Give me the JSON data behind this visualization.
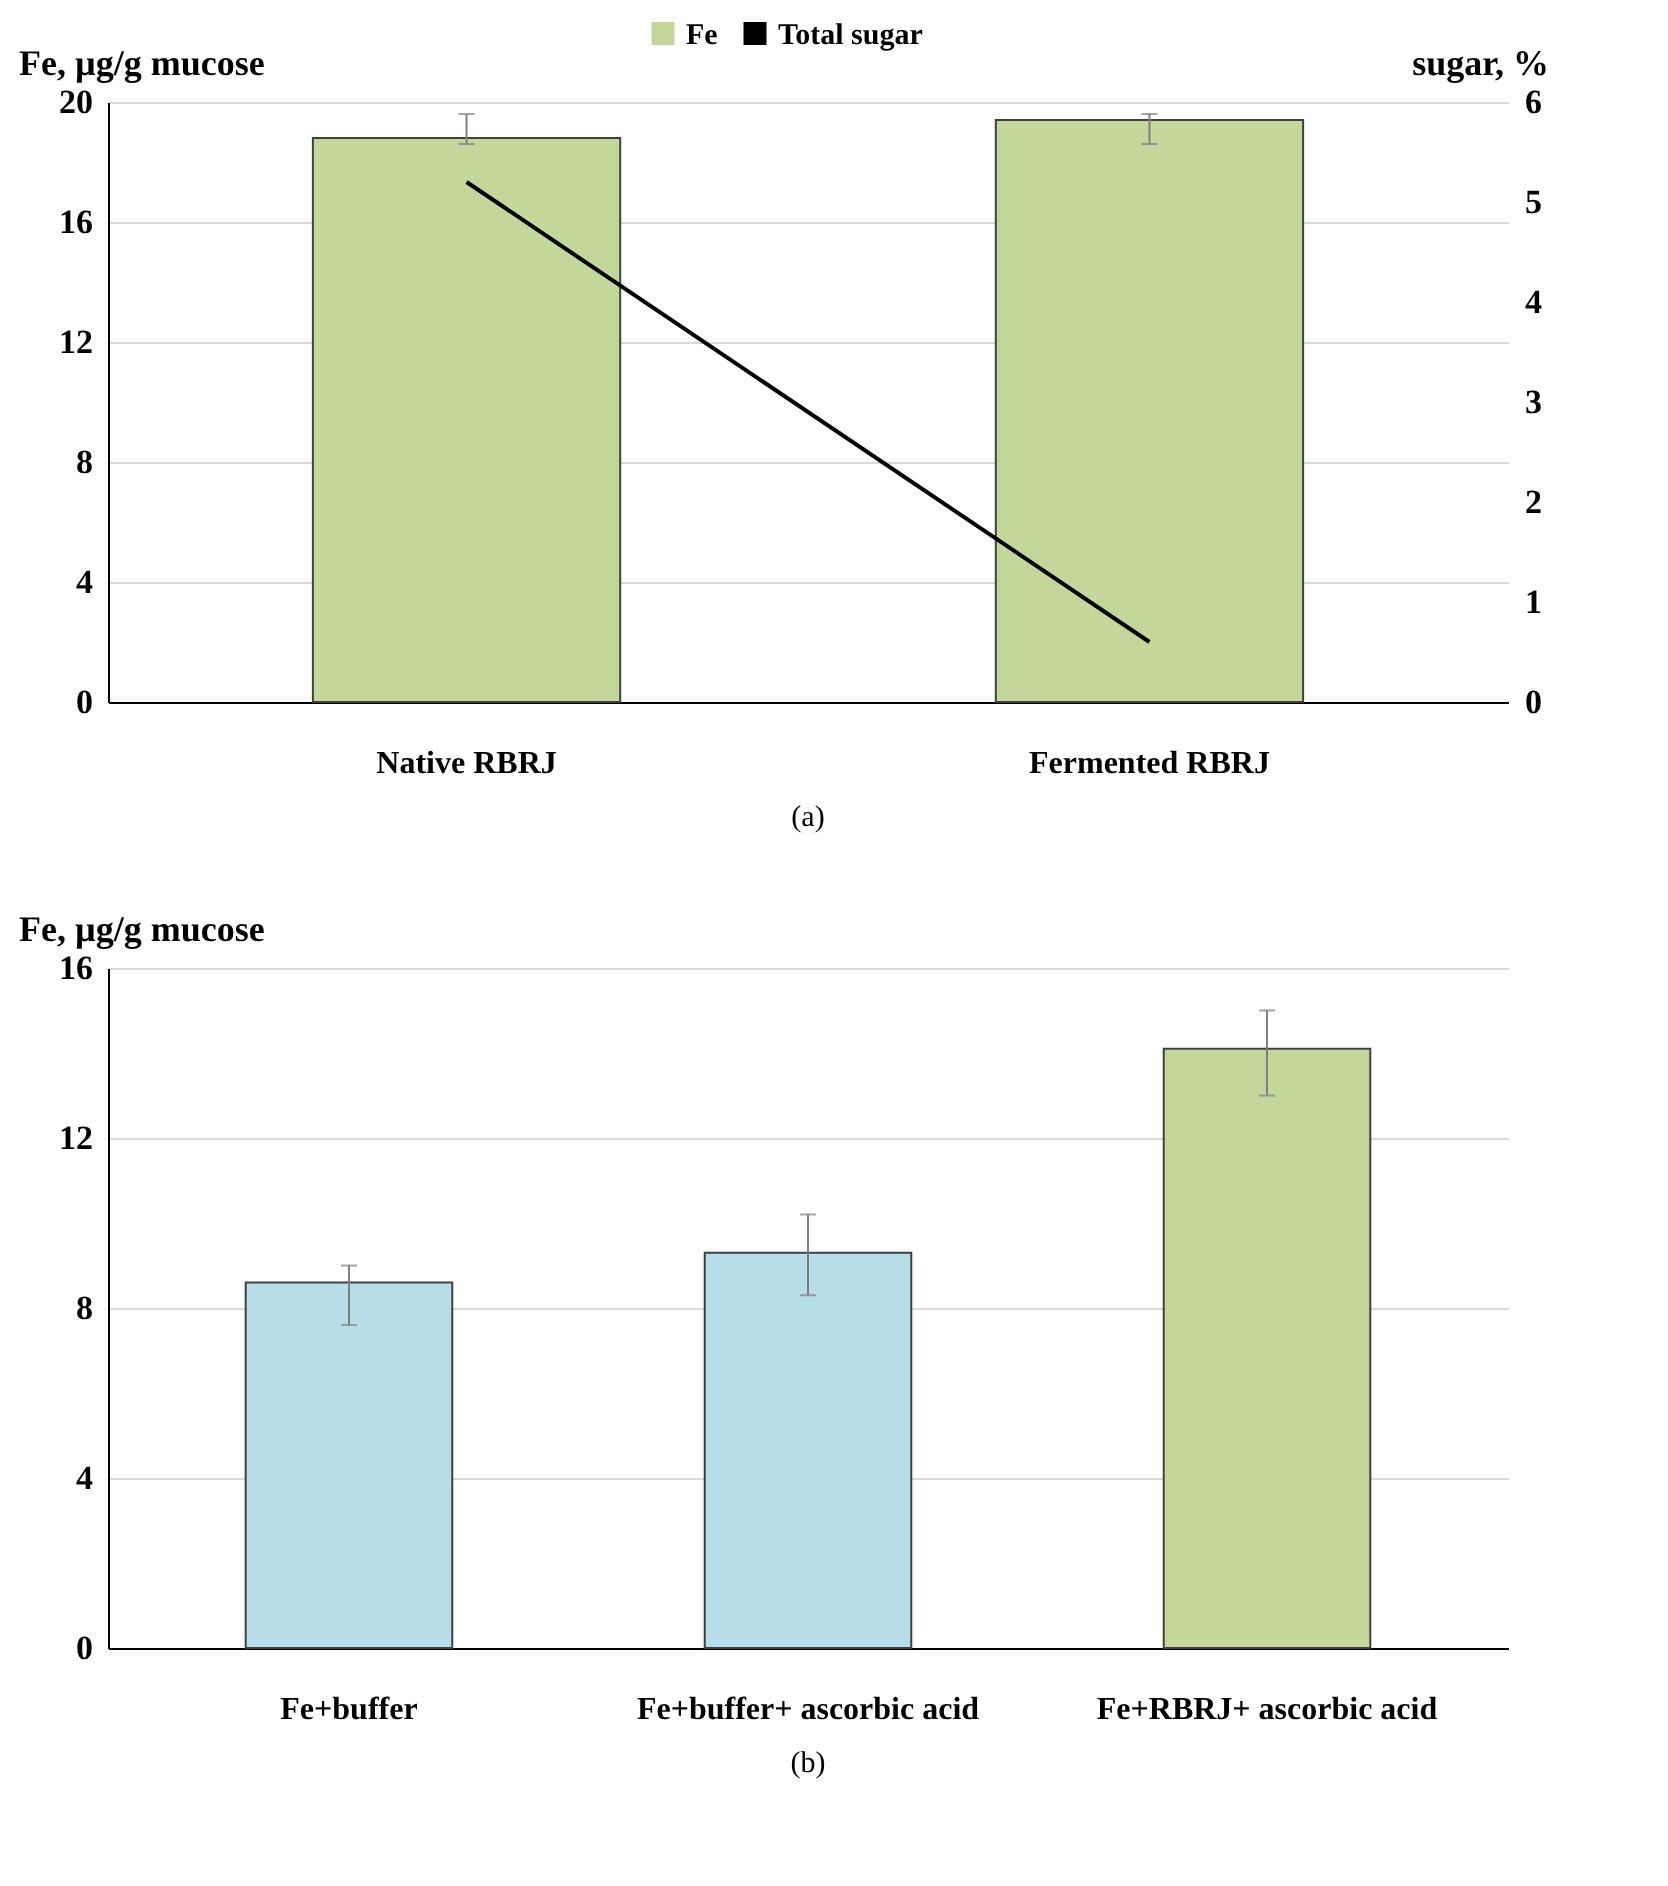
{
  "chart_data": [
    {
      "type": "bar",
      "categories": [
        "Native RBRJ",
        "Fermented RBRJ"
      ],
      "ylabel": "Fe, µg/g mucose",
      "y2label": "sugar, %",
      "series": [
        {
          "name": "Fe",
          "color": "#c4d79b",
          "values": [
            18.8,
            19.4
          ],
          "errors": [
            [
              18.6,
              19.6
            ],
            [
              18.6,
              19.6
            ]
          ]
        },
        {
          "name": "Total sugar",
          "type": "line",
          "axis": "y2",
          "color": "#000000",
          "values": [
            5.2,
            0.6
          ]
        }
      ],
      "ylim": [
        0,
        20
      ],
      "yticks": [
        0,
        4,
        8,
        12,
        16,
        20
      ],
      "y2lim": [
        0,
        6
      ],
      "y2ticks": [
        0,
        1,
        2,
        3,
        4,
        5,
        6
      ],
      "grid": "y",
      "legend": "top",
      "marker": "none",
      "annotations": [
        "(a)"
      ]
    },
    {
      "type": "bar",
      "categories": [
        "Fe+buffer",
        "Fe+buffer+ ascorbic acid",
        "Fe+RBRJ+ ascorbic acid"
      ],
      "ylabel": "Fe, µg/g mucose",
      "values": [
        8.6,
        9.3,
        14.1
      ],
      "colors": [
        "#b7dee8",
        "#b7dee8",
        "#c4d79b"
      ],
      "errors": [
        [
          7.6,
          9.0
        ],
        [
          8.3,
          10.2
        ],
        [
          13.0,
          15.0
        ]
      ],
      "ylim": [
        0,
        16
      ],
      "yticks": [
        0,
        4,
        8,
        12,
        16
      ],
      "grid": "y",
      "annotations": [
        "(b)"
      ]
    }
  ]
}
